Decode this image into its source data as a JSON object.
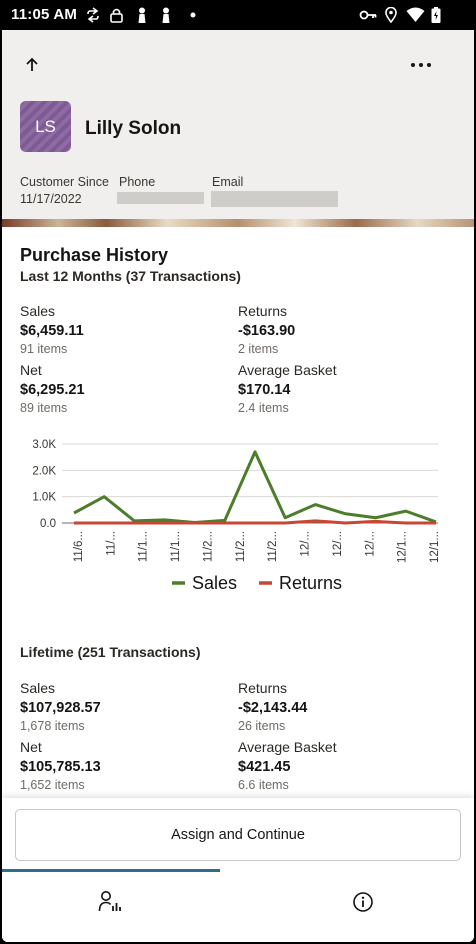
{
  "status_bar": {
    "time": "11:05 AM",
    "left_icons": [
      "sync-icon",
      "lock-icon",
      "figure-icon",
      "figure-icon",
      "dot-icon"
    ],
    "right_icons": [
      "key-icon",
      "location-icon",
      "wifi-icon",
      "battery-icon"
    ]
  },
  "header": {
    "back_icon": "arrow-up-icon",
    "more_icon": "more-horizontal-icon",
    "avatar_initials": "LS",
    "customer_name": "Lilly Solon",
    "customer_since_label": "Customer Since",
    "customer_since_value": "11/17/2022",
    "phone_label": "Phone",
    "email_label": "Email"
  },
  "purchase_history": {
    "title": "Purchase History",
    "subtitle": "Last 12 Months (37 Transactions)",
    "metrics": [
      {
        "label": "Sales",
        "value": "$6,459.11",
        "items": "91 items"
      },
      {
        "label": "Returns",
        "value": "-$163.90",
        "items": "2 items"
      },
      {
        "label": "Net",
        "value": "$6,295.21",
        "items": "89 items"
      },
      {
        "label": "Average Basket",
        "value": "$170.14",
        "items": "2.4 items"
      }
    ]
  },
  "chart_data": {
    "type": "line",
    "x_tick_labels": [
      "11/6...",
      "11/...",
      "11/1...",
      "11/1...",
      "11/2...",
      "11/2...",
      "11/2...",
      "12/...",
      "12/...",
      "12/...",
      "12/1...",
      "12/1..."
    ],
    "ylim": [
      0,
      3000
    ],
    "y_ticks": [
      "0.0",
      "1.0K",
      "2.0K",
      "3.0K"
    ],
    "grid": true,
    "legend_position": "bottom",
    "series": [
      {
        "name": "Sales",
        "color": "#4b7d2a",
        "values": [
          380,
          1000,
          80,
          120,
          20,
          100,
          2700,
          200,
          700,
          350,
          200,
          450,
          40
        ]
      },
      {
        "name": "Returns",
        "color": "#c74634",
        "values": [
          0,
          0,
          0,
          0,
          0,
          0,
          0,
          0,
          80,
          0,
          60,
          0,
          0
        ]
      }
    ]
  },
  "lifetime": {
    "subtitle": "Lifetime (251 Transactions)",
    "metrics": [
      {
        "label": "Sales",
        "value": "$107,928.57",
        "items": "1,678 items"
      },
      {
        "label": "Returns",
        "value": "-$2,143.44",
        "items": "26 items"
      },
      {
        "label": "Net",
        "value": "$105,785.13",
        "items": "1,652 items"
      },
      {
        "label": "Average Basket",
        "value": "$421.45",
        "items": "6.6 items"
      }
    ]
  },
  "footer": {
    "assign_label": "Assign and Continue",
    "tabs": [
      {
        "icon": "customer-chart-icon",
        "selected": true
      },
      {
        "icon": "info-icon",
        "selected": false
      }
    ],
    "accent_color": "#2e6e87"
  }
}
